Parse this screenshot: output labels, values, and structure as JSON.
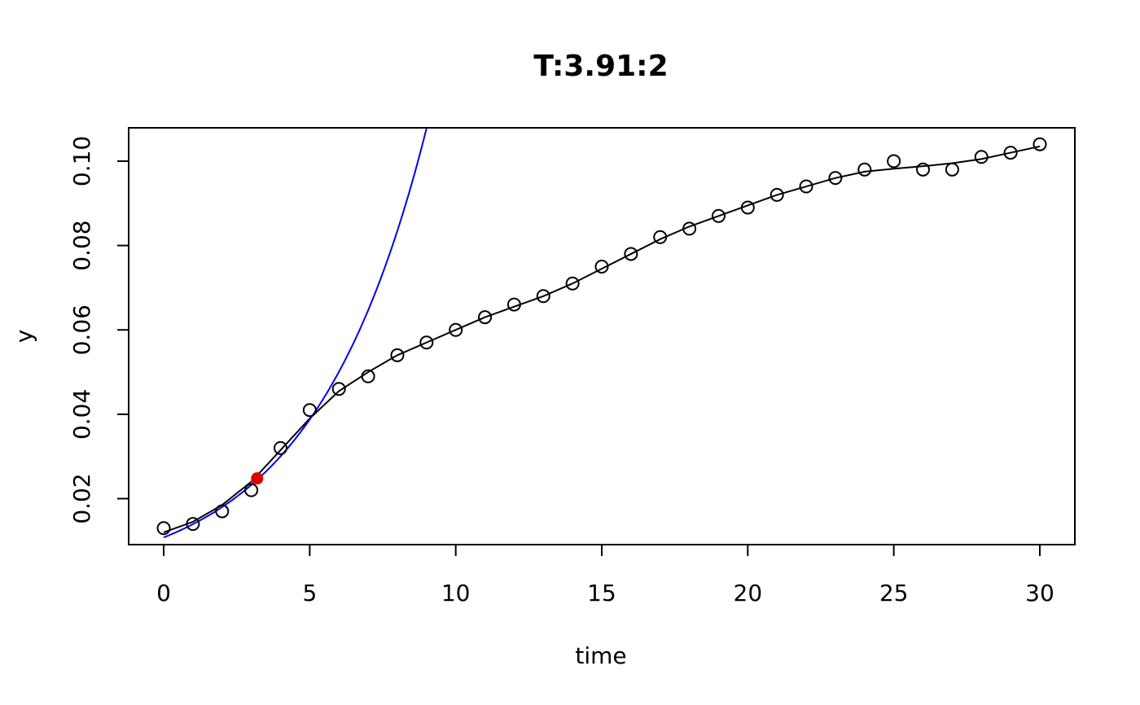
{
  "chart_data": {
    "type": "scatter",
    "title": "T:3.91:2",
    "xlabel": "time",
    "ylabel": "y",
    "xlim": [
      -1.2,
      31.2
    ],
    "ylim": [
      0.0091,
      0.1079
    ],
    "xticks": [
      0,
      5,
      10,
      15,
      20,
      25,
      30
    ],
    "yticks": [
      0.02,
      0.04,
      0.06,
      0.08,
      0.1
    ],
    "xtick_labels": [
      "0",
      "5",
      "10",
      "15",
      "20",
      "25",
      "30"
    ],
    "ytick_labels": [
      "0.02",
      "0.04",
      "0.06",
      "0.08",
      "0.10"
    ],
    "grid": false,
    "series": [
      {
        "kind": "points",
        "marker": "open-circle",
        "color": "#000000",
        "x": [
          0,
          1,
          2,
          3,
          4,
          5,
          6,
          7,
          8,
          9,
          10,
          11,
          12,
          13,
          14,
          15,
          16,
          17,
          18,
          19,
          20,
          21,
          22,
          23,
          24,
          25,
          26,
          27,
          28,
          29,
          30
        ],
        "y": [
          0.013,
          0.014,
          0.017,
          0.022,
          0.032,
          0.041,
          0.046,
          0.049,
          0.054,
          0.057,
          0.06,
          0.063,
          0.066,
          0.068,
          0.071,
          0.075,
          0.078,
          0.082,
          0.084,
          0.087,
          0.089,
          0.092,
          0.094,
          0.096,
          0.098,
          0.1,
          0.098,
          0.098,
          0.101,
          0.102,
          0.104
        ]
      },
      {
        "kind": "line",
        "color": "#000000",
        "x": [
          0,
          1,
          2,
          3,
          4,
          5,
          6,
          7,
          8,
          9,
          10,
          11,
          12,
          13,
          14,
          15,
          16,
          17,
          18,
          19,
          20,
          21,
          22,
          23,
          24,
          25,
          26,
          27,
          28,
          29,
          30
        ],
        "y": [
          0.012,
          0.0145,
          0.0185,
          0.024,
          0.0315,
          0.039,
          0.0455,
          0.05,
          0.054,
          0.057,
          0.06,
          0.063,
          0.0655,
          0.068,
          0.071,
          0.0745,
          0.078,
          0.0815,
          0.0845,
          0.087,
          0.0895,
          0.092,
          0.094,
          0.096,
          0.0975,
          0.0982,
          0.0988,
          0.0995,
          0.1005,
          0.102,
          0.1035
        ]
      },
      {
        "kind": "exponential-fit",
        "color": "#0000ee",
        "y0": 0.0108,
        "rate": 0.2556,
        "x_range": [
          0,
          9
        ]
      },
      {
        "kind": "highlight-point",
        "color": "#e00000",
        "x": [
          3.2
        ],
        "y": [
          0.0248
        ]
      }
    ]
  }
}
